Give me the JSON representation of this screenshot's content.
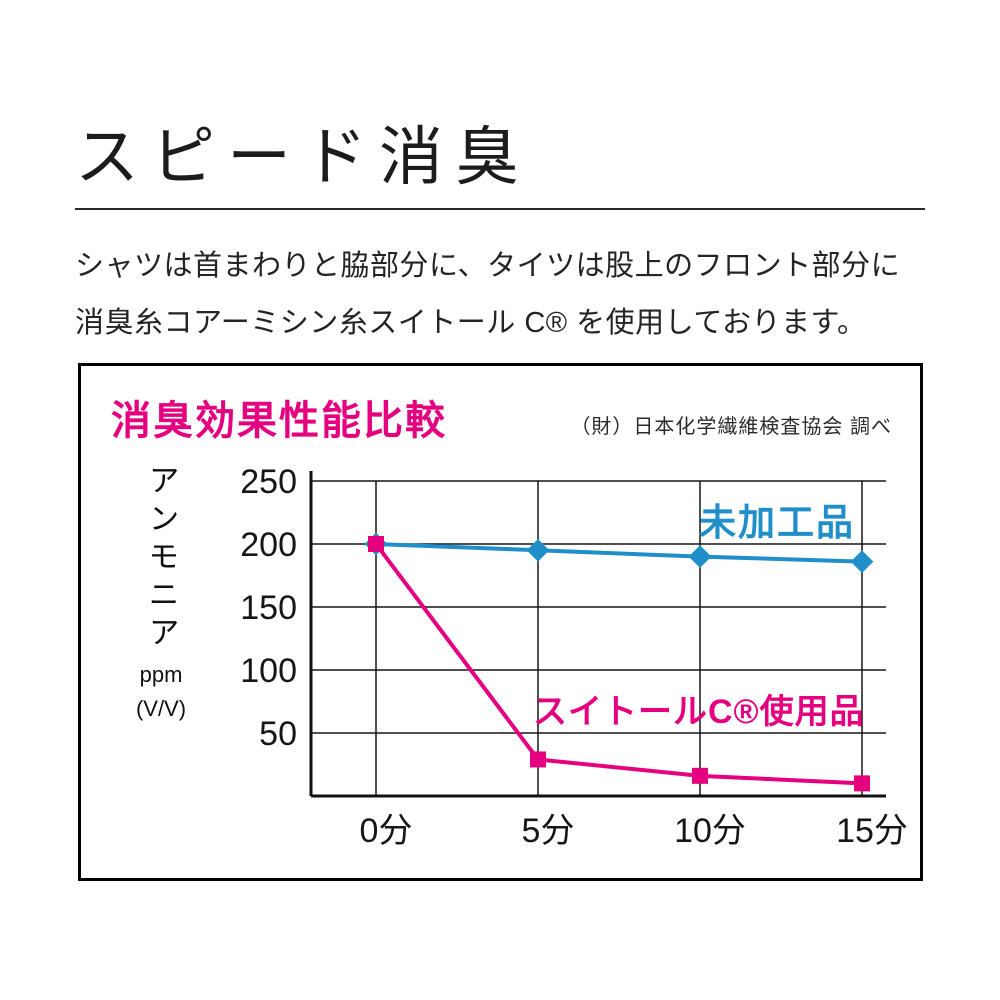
{
  "colors": {
    "pink": "#e4007f",
    "blue": "#1f8ec9",
    "ink": "#1a1a1a"
  },
  "header": {
    "title": "スピード消臭"
  },
  "intro": {
    "line1": "シャツは首まわりと脇部分に、タイツは股上のフロント部分に",
    "line2": "消臭糸コアーミシン糸スイトール C® を使用しております。"
  },
  "chart": {
    "title": "消臭効果性能比較",
    "source": "（財）日本化学繊維検査協会 調べ",
    "y_axis": {
      "label": "アンモニア",
      "unit_line1": "ppm",
      "unit_line2": "(V/V)"
    }
  },
  "chart_data": {
    "type": "line",
    "title": "消臭効果性能比較",
    "source": "（財）日本化学繊維検査協会 調べ",
    "ylabel": "アンモニア ppm (V/V)",
    "categories": [
      "0分",
      "5分",
      "10分",
      "15分"
    ],
    "ylim": [
      0,
      250
    ],
    "yticks": [
      250,
      200,
      150,
      100,
      50
    ],
    "grid": true,
    "legend_position": "inline-labels",
    "series": [
      {
        "name": "未加工品",
        "color": "#1f8ec9",
        "marker": "diamond",
        "values": [
          200,
          195,
          190,
          186
        ]
      },
      {
        "name": "スイトールC®使用品",
        "color": "#e4007f",
        "marker": "square",
        "values": [
          200,
          29,
          16,
          10
        ]
      }
    ]
  }
}
